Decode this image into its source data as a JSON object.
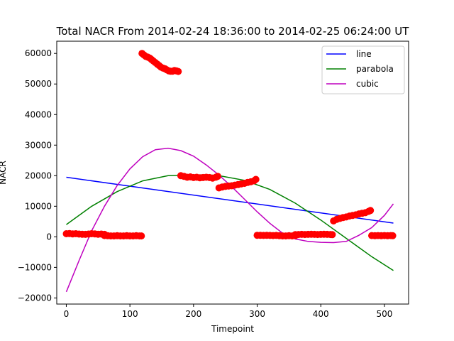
{
  "chart_data": {
    "type": "scatter",
    "title": "Total NACR From 2014-02-24 18:36:00 to 2014-02-25 06:24:00 UT",
    "xlabel": "Timepoint",
    "ylabel": "NACR",
    "xlim": [
      -15,
      538
    ],
    "ylim": [
      -22000,
      64000
    ],
    "xticks": [
      0,
      100,
      200,
      300,
      400,
      500
    ],
    "yticks": [
      -20000,
      -10000,
      0,
      10000,
      20000,
      30000,
      40000,
      50000,
      60000
    ],
    "grid": false,
    "legend_position": "top-right",
    "points_color": "#ff0000",
    "point_segments": [
      {
        "x": [
          0,
          5,
          10,
          15,
          20,
          25,
          30,
          35,
          40,
          45,
          50,
          55,
          60
        ],
        "y": [
          1000,
          1050,
          950,
          1000,
          900,
          850,
          800,
          900,
          1000,
          950,
          850,
          900,
          800
        ]
      },
      {
        "x": [
          60,
          65,
          70,
          75,
          80,
          85,
          90,
          95,
          100,
          105,
          110,
          115,
          118
        ],
        "y": [
          400,
          350,
          300,
          300,
          350,
          300,
          300,
          350,
          300,
          300,
          350,
          300,
          300
        ]
      },
      {
        "x": [
          119,
          122,
          125,
          128,
          131,
          134,
          137,
          140,
          143,
          146,
          149,
          152,
          155,
          158,
          161,
          164,
          167,
          170,
          173,
          176
        ],
        "y": [
          60000,
          59500,
          59000,
          58800,
          58500,
          58000,
          57500,
          57000,
          56500,
          56000,
          55500,
          55200,
          55000,
          54600,
          54300,
          54200,
          54200,
          54400,
          54300,
          54100
        ]
      },
      {
        "x": [
          180,
          185,
          190,
          195,
          200,
          205,
          210,
          215,
          220,
          225,
          230,
          235,
          238
        ],
        "y": [
          20000,
          19800,
          19500,
          19600,
          19400,
          19500,
          19300,
          19400,
          19500,
          19400,
          19200,
          19500,
          19800
        ]
      },
      {
        "x": [
          240,
          245,
          250,
          255,
          260,
          265,
          270,
          275,
          280,
          285,
          290,
          295,
          298
        ],
        "y": [
          16000,
          16300,
          16500,
          16600,
          16700,
          16900,
          17100,
          17300,
          17500,
          17800,
          18000,
          18300,
          18800
        ]
      },
      {
        "x": [
          300,
          305,
          310,
          315,
          320,
          325,
          330,
          335,
          340,
          345,
          350,
          355,
          360
        ],
        "y": [
          500,
          500,
          450,
          500,
          450,
          400,
          450,
          350,
          300,
          300,
          350,
          300,
          400
        ]
      },
      {
        "x": [
          360,
          365,
          370,
          375,
          380,
          385,
          390,
          395,
          400,
          405,
          410,
          415,
          418
        ],
        "y": [
          700,
          750,
          800,
          750,
          800,
          850,
          800,
          750,
          800,
          850,
          800,
          750,
          700
        ]
      },
      {
        "x": [
          420,
          425,
          430,
          435,
          440,
          445,
          450,
          455,
          460,
          465,
          470,
          475,
          478
        ],
        "y": [
          5200,
          5700,
          6000,
          6300,
          6500,
          6800,
          7000,
          7200,
          7500,
          7700,
          7900,
          8300,
          8600
        ]
      },
      {
        "x": [
          480,
          485,
          490,
          495,
          500,
          505,
          510,
          513
        ],
        "y": [
          400,
          350,
          400,
          350,
          400,
          350,
          400,
          350
        ]
      }
    ],
    "series": [
      {
        "name": "line",
        "color": "#0000ff",
        "x": [
          0,
          514
        ],
        "y": [
          19500,
          4500
        ]
      },
      {
        "name": "parabola",
        "color": "#008000",
        "x": [
          0,
          40,
          80,
          120,
          160,
          200,
          220,
          240,
          280,
          320,
          360,
          400,
          440,
          480,
          514
        ],
        "y": [
          4000,
          10000,
          14800,
          18300,
          20000,
          20200,
          20300,
          20000,
          18500,
          15500,
          11000,
          5500,
          -500,
          -6500,
          -11000
        ]
      },
      {
        "name": "cubic",
        "color": "#bf00bf",
        "x": [
          0,
          20,
          40,
          60,
          80,
          100,
          120,
          140,
          160,
          180,
          200,
          220,
          240,
          260,
          280,
          300,
          320,
          340,
          360,
          380,
          400,
          420,
          440,
          460,
          480,
          500,
          514
        ],
        "y": [
          -18000,
          -7800,
          2000,
          10000,
          16800,
          22200,
          26200,
          28500,
          29000,
          28200,
          26400,
          23500,
          20200,
          16400,
          12300,
          8200,
          4400,
          1200,
          -700,
          -1500,
          -1800,
          -1900,
          -1500,
          500,
          3000,
          7000,
          10800
        ]
      }
    ]
  }
}
